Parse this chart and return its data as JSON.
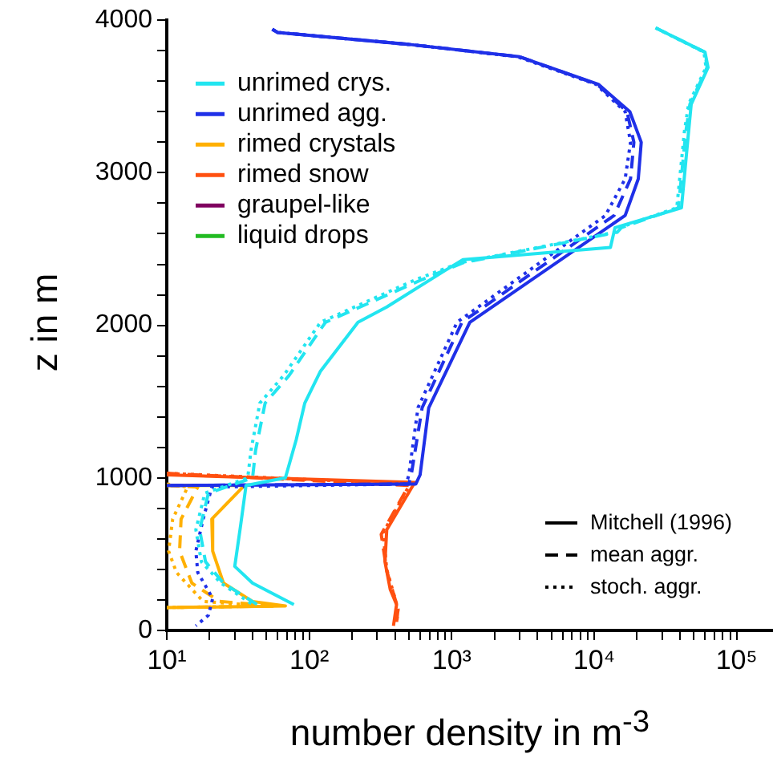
{
  "chart_data": {
    "type": "line",
    "xlabel": "number density in m$^{-3}$",
    "ylabel": "z in m",
    "log": "x",
    "legend": "top left",
    "annotations": [
      "Mitchell (1996)",
      "mean aggr.",
      "stoch. aggr."
    ],
    "xlim": [
      10,
      180000
    ],
    "xticks": [
      {
        "value": 10,
        "label": "10¹"
      },
      {
        "value": 20,
        "label": null
      },
      {
        "value": 30,
        "label": null
      },
      {
        "value": 40,
        "label": null
      },
      {
        "value": 50,
        "label": null
      },
      {
        "value": 60,
        "label": null
      },
      {
        "value": 70,
        "label": null
      },
      {
        "value": 80,
        "label": null
      },
      {
        "value": 90,
        "label": null
      },
      {
        "value": 100,
        "label": "10²"
      },
      {
        "value": 200,
        "label": null
      },
      {
        "value": 300,
        "label": null
      },
      {
        "value": 400,
        "label": null
      },
      {
        "value": 500,
        "label": null
      },
      {
        "value": 600,
        "label": null
      },
      {
        "value": 700,
        "label": null
      },
      {
        "value": 800,
        "label": null
      },
      {
        "value": 900,
        "label": null
      },
      {
        "value": 1000,
        "label": "10³"
      },
      {
        "value": 2000,
        "label": null
      },
      {
        "value": 3000,
        "label": null
      },
      {
        "value": 4000,
        "label": null
      },
      {
        "value": 5000,
        "label": null
      },
      {
        "value": 6000,
        "label": null
      },
      {
        "value": 7000,
        "label": null
      },
      {
        "value": 8000,
        "label": null
      },
      {
        "value": 9000,
        "label": null
      },
      {
        "value": 10000,
        "label": "10⁴"
      },
      {
        "value": 20000,
        "label": null
      },
      {
        "value": 30000,
        "label": null
      },
      {
        "value": 40000,
        "label": null
      },
      {
        "value": 50000,
        "label": null
      },
      {
        "value": 60000,
        "label": null
      },
      {
        "value": 70000,
        "label": null
      },
      {
        "value": 80000,
        "label": null
      },
      {
        "value": 90000,
        "label": null
      },
      {
        "value": 100000,
        "label": "10⁵"
      }
    ],
    "ylim": [
      0,
      4000
    ],
    "yticks": [
      0,
      {
        "value": 200,
        "label": null
      },
      {
        "value": 400,
        "label": null
      },
      {
        "value": 600,
        "label": null
      },
      {
        "value": 800,
        "label": null
      },
      1000,
      {
        "value": 1200,
        "label": null
      },
      {
        "value": 1400,
        "label": null
      },
      {
        "value": 1600,
        "label": null
      },
      {
        "value": 1800,
        "label": null
      },
      2000,
      {
        "value": 2200,
        "label": null
      },
      {
        "value": 2400,
        "label": null
      },
      {
        "value": 2600,
        "label": null
      },
      {
        "value": 2800,
        "label": null
      },
      3000,
      {
        "value": 3200,
        "label": null
      },
      {
        "value": 3400,
        "label": null
      },
      {
        "value": 3600,
        "label": null
      },
      {
        "value": 3800,
        "label": null
      },
      4000
    ],
    "series": [
      {
        "color": "#22e5f0",
        "line_style": "solid",
        "x": [
          27000,
          60000,
          63000,
          48000,
          46000,
          41000,
          14000,
          13000,
          1200,
          900,
          350,
          220,
          120,
          93,
          81,
          68,
          36,
          33,
          30,
          40,
          78
        ],
        "values": [
          3950,
          3790,
          3690,
          3450,
          3270,
          2770,
          2640,
          2510,
          2430,
          2360,
          2120,
          2020,
          1700,
          1490,
          1250,
          1000,
          950,
          690,
          420,
          310,
          170
        ]
      },
      {
        "color": "#22e5f0",
        "line_style": "dashed",
        "x": [
          27000,
          60000,
          62000,
          47000,
          44000,
          39000,
          15500,
          14500,
          1200,
          620,
          130,
          72,
          49,
          42,
          40,
          19.6,
          17,
          18.7,
          25,
          43
        ],
        "values": [
          3950,
          3790,
          3690,
          3450,
          3270,
          2770,
          2640,
          2610,
          2410,
          2300,
          2020,
          1670,
          1490,
          1180,
          1000,
          900,
          660,
          450,
          310,
          170
        ]
      },
      {
        "color": "#22e5f0",
        "line_style": "dotted",
        "x": [
          27000,
          59000,
          61000,
          46000,
          43000,
          38000,
          15000,
          14000,
          1150,
          560,
          120,
          66,
          45,
          39,
          37,
          18.5,
          16,
          17.5,
          24,
          40
        ],
        "values": [
          3950,
          3790,
          3690,
          3450,
          3270,
          2770,
          2640,
          2610,
          2410,
          2300,
          2020,
          1670,
          1490,
          1180,
          1000,
          900,
          660,
          450,
          310,
          170
        ]
      },
      {
        "color": "#1f30e8",
        "line_style": "solid",
        "x": [
          55,
          60,
          520,
          3000,
          10700,
          17800,
          21400,
          20400,
          16500,
          1340,
          690,
          600,
          560,
          10
        ],
        "values": [
          3940,
          3920,
          3840,
          3760,
          3580,
          3400,
          3200,
          2960,
          2720,
          2020,
          1460,
          1020,
          960,
          950
        ]
      },
      {
        "color": "#1f30e8",
        "line_style": "dashed",
        "x": [
          55,
          60,
          520,
          3000,
          10500,
          17000,
          19000,
          18000,
          13800,
          1180,
          620,
          520,
          500,
          10
        ],
        "values": [
          3940,
          3920,
          3840,
          3760,
          3580,
          3400,
          3200,
          2960,
          2720,
          2020,
          1460,
          1020,
          960,
          950
        ]
      },
      {
        "color": "#1f30e8",
        "line_style": "dotted",
        "x": [
          55,
          60,
          520,
          2900,
          10300,
          16500,
          18000,
          16500,
          12000,
          1090,
          580,
          500,
          480,
          20.7,
          18,
          16,
          16.5,
          21,
          19.6,
          16
        ],
        "values": [
          3940,
          3920,
          3840,
          3760,
          3580,
          3400,
          3200,
          2960,
          2720,
          2020,
          1460,
          1020,
          960,
          940,
          730,
          520,
          380,
          210,
          100,
          30
        ]
      },
      {
        "color": "#ffb000",
        "line_style": "solid",
        "x": [
          10,
          35,
          20.7,
          21,
          25,
          40,
          68,
          10
        ],
        "values": [
          950,
          950,
          730,
          520,
          310,
          190,
          160,
          150
        ]
      },
      {
        "color": "#ffb000",
        "line_style": "dashed",
        "x": [
          10,
          16.5,
          12.6,
          12.3,
          15,
          23.5,
          60,
          10
        ],
        "values": [
          950,
          940,
          730,
          520,
          310,
          190,
          160,
          150
        ]
      },
      {
        "color": "#ffb000",
        "line_style": "dotted",
        "x": [
          10,
          14,
          11,
          10.3,
          11.7,
          18,
          50,
          10
        ],
        "values": [
          960,
          940,
          730,
          520,
          380,
          190,
          160,
          150
        ]
      },
      {
        "color": "#ff5010",
        "line_style": "solid",
        "x": [
          10,
          550,
          350,
          340,
          370,
          410,
          390
        ],
        "values": [
          1020,
          970,
          660,
          450,
          270,
          170,
          30
        ]
      },
      {
        "color": "#ff5010",
        "line_style": "dashed",
        "x": [
          10,
          500,
          320,
          350,
          420,
          410
        ],
        "values": [
          1030,
          950,
          630,
          390,
          140,
          50
        ]
      },
      {
        "color": "#ff5010",
        "line_style": "dotted",
        "x": [
          10,
          510,
          330,
          350,
          420,
          410
        ],
        "values": [
          1030,
          960,
          640,
          400,
          140,
          40
        ]
      },
      {
        "name": "unrimed crys.",
        "color": "#22e5f0",
        "values": [
          null
        ]
      },
      {
        "name": "unrimed agg.",
        "color": "#1f30e8",
        "values": [
          null
        ]
      },
      {
        "name": "rimed crystals",
        "color": "#ffb000",
        "values": [
          null
        ]
      },
      {
        "name": "rimed snow",
        "color": "#ff5010",
        "values": [
          null
        ]
      },
      {
        "name": "graupel-like",
        "color": "#800060",
        "values": [
          null
        ]
      },
      {
        "name": "liquid drops",
        "color": "#22bb22",
        "values": [
          null
        ]
      }
    ]
  }
}
